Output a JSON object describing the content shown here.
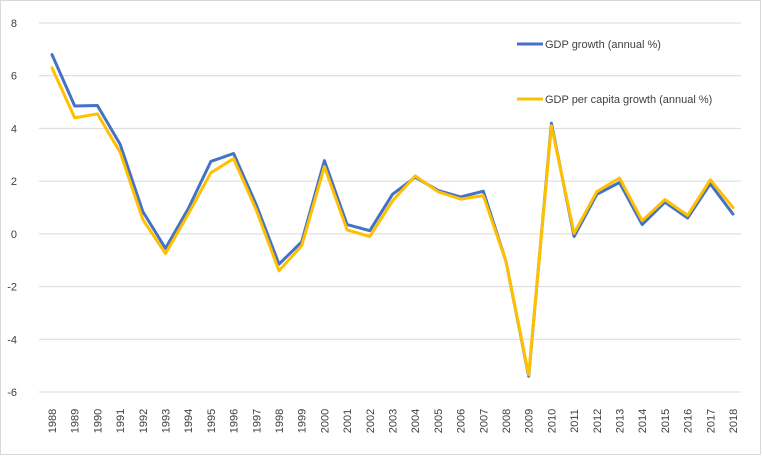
{
  "chart_data": {
    "type": "line",
    "title": "",
    "xlabel": "",
    "ylabel": "",
    "ylim": [
      -6,
      8
    ],
    "yticks": [
      -6,
      -4,
      -2,
      0,
      2,
      4,
      6,
      8
    ],
    "grid": "horizontal",
    "legend_position": "top-right",
    "categories": [
      "1988",
      "1989",
      "1990",
      "1991",
      "1992",
      "1993",
      "1994",
      "1995",
      "1996",
      "1997",
      "1998",
      "1999",
      "2000",
      "2001",
      "2002",
      "2003",
      "2004",
      "2005",
      "2006",
      "2007",
      "2008",
      "2009",
      "2010",
      "2011",
      "2012",
      "2013",
      "2014",
      "2015",
      "2016",
      "2017",
      "2018"
    ],
    "series": [
      {
        "name": "GDP growth (annual %)",
        "color": "#4472c4",
        "values": [
          6.8,
          4.85,
          4.87,
          3.4,
          0.85,
          -0.55,
          0.95,
          2.75,
          3.05,
          1.1,
          -1.15,
          -0.3,
          2.78,
          0.35,
          0.12,
          1.5,
          2.15,
          1.65,
          1.4,
          1.62,
          -1.05,
          -5.4,
          4.2,
          -0.1,
          1.5,
          1.95,
          0.35,
          1.2,
          0.6,
          1.9,
          0.75
        ]
      },
      {
        "name": "GDP per capita growth (annual %)",
        "color": "#ffc000",
        "values": [
          6.3,
          4.4,
          4.55,
          3.1,
          0.55,
          -0.75,
          0.75,
          2.32,
          2.85,
          0.9,
          -1.4,
          -0.45,
          2.55,
          0.15,
          -0.1,
          1.25,
          2.2,
          1.6,
          1.32,
          1.45,
          -1.05,
          -5.35,
          4.1,
          0.02,
          1.6,
          2.12,
          0.5,
          1.3,
          0.7,
          2.05,
          1.0
        ]
      }
    ]
  }
}
